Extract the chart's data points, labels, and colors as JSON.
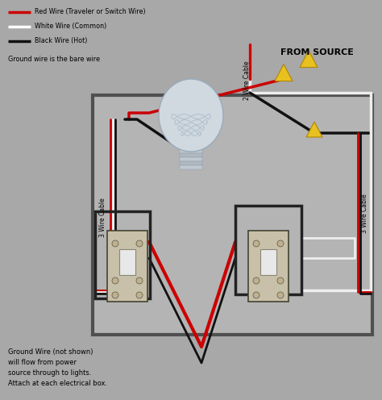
{
  "background_color": "#a8a8a8",
  "legend_items": [
    {
      "label": "Red Wire (Traveler or Switch Wire)",
      "color": "#cc0000"
    },
    {
      "label": "White Wire (Common)",
      "color": "#ffffff"
    },
    {
      "label": "Black Wire (Hot)",
      "color": "#111111"
    }
  ],
  "legend_note": "Ground wire is the bare wire",
  "bottom_note": "Ground Wire (not shown)\nwill flow from power\nsource through to lights.\nAttach at each electrical box.",
  "wire_red": "#cc0000",
  "wire_white": "#eeeeee",
  "wire_black": "#111111",
  "wire_lw": 2.5,
  "nut_color": "#e8c020",
  "label_3wire_left": "3 Wire Cable",
  "label_3wire_right": "3 Wire Cable",
  "label_2wire": "2 Wire Cable",
  "source_label": "FROM SOURCE",
  "figsize": [
    4.74,
    4.96
  ],
  "dpi": 100,
  "inner_box_color": "#b8b8b8",
  "outer_box_edge": "#555555",
  "inner_box_edge": "#444444"
}
